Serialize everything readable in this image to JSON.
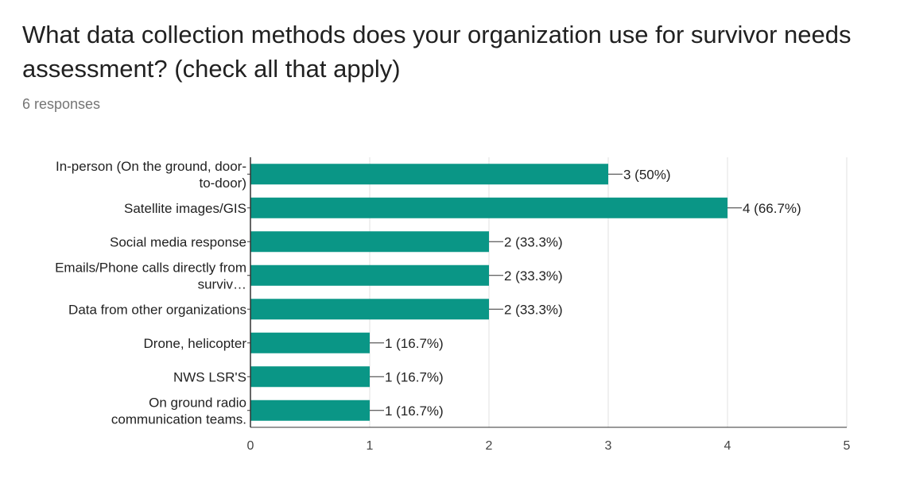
{
  "header": {
    "title": "What data collection methods does your organization use for survivor needs assessment? (check all that apply)",
    "responses": "6 responses"
  },
  "chart_data": {
    "type": "bar",
    "orientation": "horizontal",
    "categories": [
      [
        "In-person (On the ground, door-",
        "to-door)"
      ],
      [
        "Satellite images/GIS"
      ],
      [
        "Social media response"
      ],
      [
        "Emails/Phone calls directly from",
        "surviv…"
      ],
      [
        "Data from other organizations"
      ],
      [
        "Drone, helicopter"
      ],
      [
        "NWS LSR'S"
      ],
      [
        "On ground radio",
        "communication teams."
      ]
    ],
    "values": [
      3,
      4,
      2,
      2,
      2,
      1,
      1,
      1
    ],
    "data_labels": [
      "3 (50%)",
      "4 (66.7%)",
      "2 (33.3%)",
      "2 (33.3%)",
      "2 (33.3%)",
      "1 (16.7%)",
      "1 (16.7%)",
      "1 (16.7%)"
    ],
    "xlim": [
      0,
      5
    ],
    "xticks": [
      "0",
      "1",
      "2",
      "3",
      "4",
      "5"
    ],
    "grid": true,
    "bar_color": "#0a9686",
    "grid_color": "#e0e0e0",
    "axis_color": "#333333"
  }
}
